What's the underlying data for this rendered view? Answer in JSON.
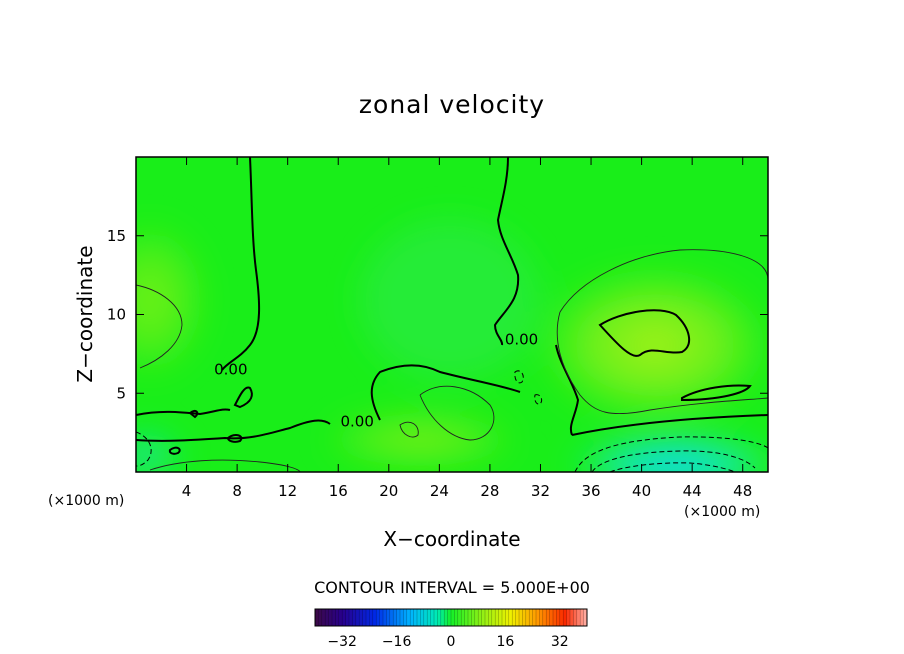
{
  "chart_data": {
    "type": "heatmap",
    "title": "zonal velocity",
    "xlabel": "X−coordinate",
    "ylabel": "Z−coordinate",
    "x_unit_label": "(×1000 m)",
    "x_unit_label_right": "(×1000 m)",
    "xlim": [
      0,
      50
    ],
    "ylim": [
      0,
      20
    ],
    "x_ticks": [
      4,
      8,
      12,
      16,
      20,
      24,
      28,
      32,
      36,
      40,
      44,
      48
    ],
    "y_ticks": [
      5,
      10,
      15
    ],
    "contour_interval_text": "CONTOUR INTERVAL = 5.000E+00",
    "contour_interval": 5.0,
    "contour_labels": [
      {
        "text": "0.00",
        "x": 7.5,
        "y": 6.5
      },
      {
        "text": "0.00",
        "x": 17.5,
        "y": 3.2
      },
      {
        "text": "0.00",
        "x": 30.5,
        "y": 8.4
      }
    ],
    "colorbar": {
      "range": [
        -40,
        40
      ],
      "tick_values": [
        -32,
        -16,
        0,
        16,
        32
      ],
      "tick_labels": [
        "−32",
        "−16",
        "0",
        "16",
        "32"
      ]
    },
    "value_features": [
      {
        "description": "max",
        "x": 40,
        "y": 9,
        "value": 8
      },
      {
        "description": "min",
        "x": 43,
        "y": 1,
        "value": -15
      },
      {
        "description": "min",
        "x": 0.5,
        "y": 1.5,
        "value": -7
      }
    ],
    "colors": {
      "field_base": "#19ee19",
      "positive_tint": "#b9f21a",
      "negative_tint": "#0ad6ff"
    }
  }
}
